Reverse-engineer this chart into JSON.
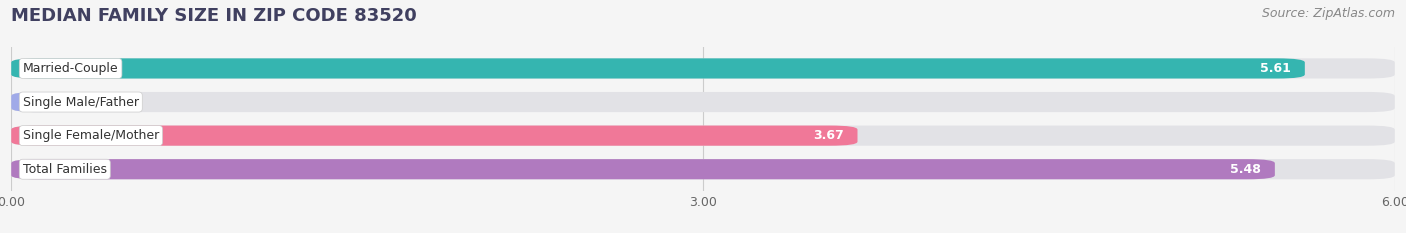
{
  "title": "MEDIAN FAMILY SIZE IN ZIP CODE 83520",
  "source": "Source: ZipAtlas.com",
  "categories": [
    "Married-Couple",
    "Single Male/Father",
    "Single Female/Mother",
    "Total Families"
  ],
  "values": [
    5.61,
    0.0,
    3.67,
    5.48
  ],
  "bar_colors": [
    "#35b5b0",
    "#a0aae8",
    "#f07898",
    "#b07abf"
  ],
  "xlim": [
    0,
    6.0
  ],
  "xticks": [
    0.0,
    3.0,
    6.0
  ],
  "xtick_labels": [
    "0.00",
    "3.00",
    "6.00"
  ],
  "background_color": "#f5f5f5",
  "bar_bg_color": "#e2e2e6",
  "title_fontsize": 13,
  "source_fontsize": 9,
  "bar_label_fontsize": 9,
  "category_fontsize": 9
}
